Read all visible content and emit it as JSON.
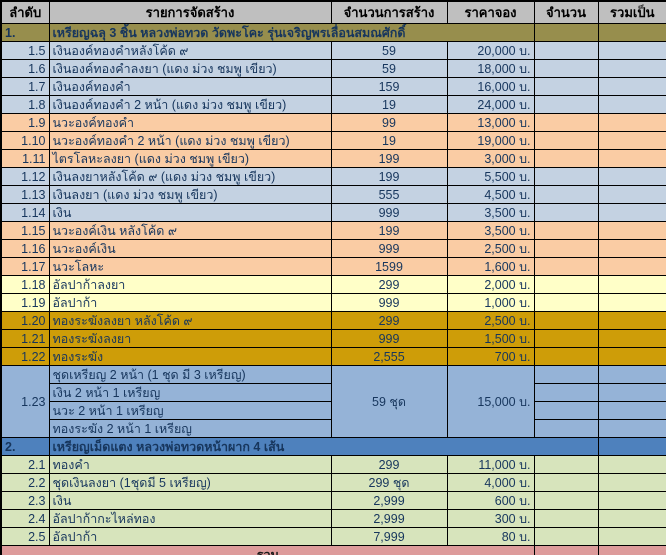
{
  "colors": {
    "header_bg": "#BFBFBF",
    "text": "#17365D",
    "border": "#000000",
    "olive": "#978E4D",
    "blue": "#C4D2E2",
    "peach": "#FACCA4",
    "lemon": "#FFFFC8",
    "gold": "#CE9D08",
    "bluemid": "#95B3D7",
    "blue2": "#4E81BD",
    "green": "#D7E4BC",
    "pink": "#DD9B9B"
  },
  "table": {
    "columns": [
      "ลำดับ",
      "รายการจัดสร้าง",
      "จำนวนการสร้าง",
      "ราคาจอง",
      "จำนวน",
      "รวมเป็น"
    ],
    "currency_suffix": "บ.",
    "rows": [
      {
        "type": "section",
        "no": "1.",
        "label": "เหรียญฉลุ 3 ชิ้น หลวงพ่อทวด วัดพะโคะ รุ่นเจริญพรเลื่อนสมณศักดิ์",
        "band": "olive",
        "label_colspan": 3
      },
      {
        "type": "item",
        "no": "1.5",
        "label": "เงินองค์ทองคำหลังโค้ด ๙",
        "made": "59",
        "price": "20,000 บ.",
        "band": "blue"
      },
      {
        "type": "item",
        "no": "1.6",
        "label": "เงินองค์ทองคำลงยา (แดง ม่วง ชมพู เขียว)",
        "made": "59",
        "price": "18,000 บ.",
        "band": "blue"
      },
      {
        "type": "item",
        "no": "1.7",
        "label": "เงินองค์ทองคำ",
        "made": "159",
        "price": "16,000 บ.",
        "band": "blue"
      },
      {
        "type": "item",
        "no": "1.8",
        "label": "เงินองค์ทองคำ 2 หน้า (แดง ม่วง ชมพู เขียว)",
        "made": "19",
        "price": "24,000 บ.",
        "band": "blue"
      },
      {
        "type": "item",
        "no": "1.9",
        "label": "นวะองค์ทองคำ",
        "made": "99",
        "price": "13,000 บ.",
        "band": "peach"
      },
      {
        "type": "item",
        "no": "1.10",
        "label": "นวะองค์ทองคำ 2 หน้า (แดง ม่วง ชมพู เขียว)",
        "made": "19",
        "price": "19,000 บ.",
        "band": "peach"
      },
      {
        "type": "item",
        "no": "1.11",
        "label": "ไตรโลหะลงยา (แดง ม่วง ชมพู เขียว)",
        "made": "199",
        "price": "3,000 บ.",
        "band": "peach"
      },
      {
        "type": "item",
        "no": "1.12",
        "label": "เงินลงยาหลังโค้ด ๙ (แดง ม่วง ชมพู เขียว)",
        "made": "199",
        "price": "5,500 บ.",
        "band": "blue"
      },
      {
        "type": "item",
        "no": "1.13",
        "label": "เงินลงยา (แดง ม่วง ชมพู เขียว)",
        "made": "555",
        "price": "4,500 บ.",
        "band": "blue"
      },
      {
        "type": "item",
        "no": "1.14",
        "label": "เงิน",
        "made": "999",
        "price": "3,500 บ.",
        "band": "blue"
      },
      {
        "type": "item",
        "no": "1.15",
        "label": "นวะองค์เงิน หลังโค้ด ๙",
        "made": "199",
        "price": "3,500 บ.",
        "band": "peach"
      },
      {
        "type": "item",
        "no": "1.16",
        "label": "นวะองค์เงิน",
        "made": "999",
        "price": "2,500 บ.",
        "band": "peach"
      },
      {
        "type": "item",
        "no": "1.17",
        "label": "นวะโลหะ",
        "made": "1599",
        "price": "1,600 บ.",
        "band": "peach"
      },
      {
        "type": "item",
        "no": "1.18",
        "label": "อัลปาก้าลงยา",
        "made": "299",
        "price": "2,000 บ.",
        "band": "lemon"
      },
      {
        "type": "item",
        "no": "1.19",
        "label": "อัลปาก้า",
        "made": "999",
        "price": "1,000 บ.",
        "band": "lemon"
      },
      {
        "type": "item",
        "no": "1.20",
        "label": "ทองระฆังลงยา หลังโค้ด ๙",
        "made": "299",
        "price": "2,500 บ.",
        "band": "gold"
      },
      {
        "type": "item",
        "no": "1.21",
        "label": "ทองระฆังลงยา",
        "made": "999",
        "price": "1,500 บ.",
        "band": "gold"
      },
      {
        "type": "item",
        "no": "1.22",
        "label": "ทองระฆัง",
        "made": "2,555",
        "price": "700 บ.",
        "band": "gold"
      },
      {
        "type": "group",
        "no": "1.23",
        "label": "ชุดเหรียญ 2 หน้า (1 ชุด มี 3 เหรียญ)",
        "made": "59 ชุด",
        "price": "15,000 บ.",
        "band": "bluemid",
        "subs": [
          "เงิน 2 หน้า 1 เหรียญ",
          "นวะ 2 หน้า 1 เหรียญ",
          "ทองระฆัง 2 หน้า 1 เหรียญ"
        ]
      },
      {
        "type": "section",
        "no": "2.",
        "label": "เหรียญเม็ดแตง หลวงพ่อทวดหน้าผาก 4 เส้น",
        "band": "blue2",
        "label_colspan": 4
      },
      {
        "type": "item",
        "no": "2.1",
        "label": "ทองคำ",
        "made": "299",
        "price": "11,000 บ.",
        "band": "green"
      },
      {
        "type": "item",
        "no": "2.2",
        "label": "ชุดเงินลงยา (1ชุดมี 5 เหรียญ)",
        "made": "299 ชุด",
        "price": "4,000 บ.",
        "band": "green"
      },
      {
        "type": "item",
        "no": "2.3",
        "label": "เงิน",
        "made": "2,999",
        "price": "600 บ.",
        "band": "green"
      },
      {
        "type": "item",
        "no": "2.4",
        "label": "อัลปาก้ากะไหล่ทอง",
        "made": "2,999",
        "price": "300 บ.",
        "band": "green"
      },
      {
        "type": "item",
        "no": "2.5",
        "label": "อัลปาก้า",
        "made": "7,999",
        "price": "80 บ.",
        "band": "green"
      },
      {
        "type": "total",
        "label": "รวม",
        "band": "pink",
        "label_colspan": 4
      }
    ]
  }
}
